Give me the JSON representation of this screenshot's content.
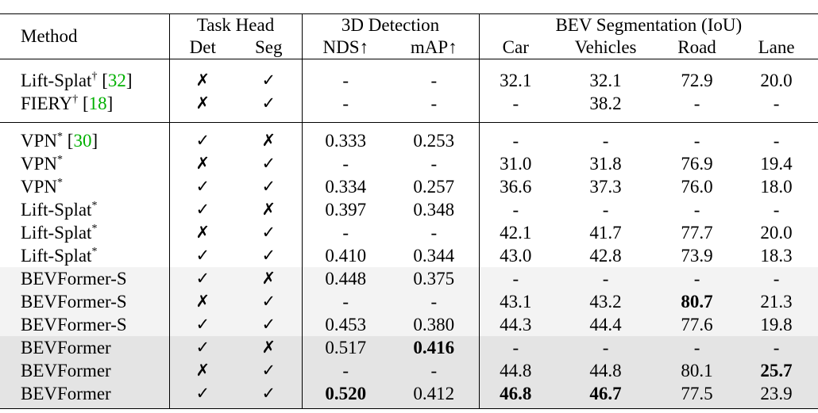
{
  "table": {
    "header": {
      "method": "Method",
      "task_head": "Task Head",
      "det": "Det",
      "seg": "Seg",
      "detection": "3D Detection",
      "nds": "NDS↑",
      "map": "mAP↑",
      "segmentation": "BEV Segmentation (IoU)",
      "car": "Car",
      "vehicles": "Vehicles",
      "road": "Road",
      "lane": "Lane"
    },
    "groups": [
      {
        "rows": [
          {
            "method": {
              "name": "Lift-Splat",
              "mark": "†",
              "cite": [
                "[",
                "32",
                "]"
              ]
            },
            "cells": [
              "✗",
              "✓",
              "-",
              "-",
              "32.1",
              "32.1",
              "72.9",
              "20.0"
            ],
            "bold": []
          },
          {
            "method": {
              "name": "FIERY",
              "mark": "†",
              "cite": [
                "[",
                "18",
                "]"
              ]
            },
            "cells": [
              "✗",
              "✓",
              "-",
              "-",
              "-",
              "38.2",
              "-",
              "-"
            ],
            "bold": []
          }
        ]
      },
      {
        "rows": [
          {
            "method": {
              "name": "VPN",
              "mark": "*",
              "cite": [
                "[",
                "30",
                "]"
              ]
            },
            "cells": [
              "✓",
              "✗",
              "0.333",
              "0.253",
              "-",
              "-",
              "-",
              "-"
            ],
            "bold": []
          },
          {
            "method": {
              "name": "VPN",
              "mark": "*"
            },
            "cells": [
              "✗",
              "✓",
              "-",
              "-",
              "31.0",
              "31.8",
              "76.9",
              "19.4"
            ],
            "bold": []
          },
          {
            "method": {
              "name": "VPN",
              "mark": "*"
            },
            "cells": [
              "✓",
              "✓",
              "0.334",
              "0.257",
              "36.6",
              "37.3",
              "76.0",
              "18.0"
            ],
            "bold": []
          },
          {
            "method": {
              "name": "Lift-Splat",
              "mark": "*"
            },
            "cells": [
              "✓",
              "✗",
              "0.397",
              "0.348",
              "-",
              "-",
              "-",
              "-"
            ],
            "bold": []
          },
          {
            "method": {
              "name": "Lift-Splat",
              "mark": "*"
            },
            "cells": [
              "✗",
              "✓",
              "-",
              "-",
              "42.1",
              "41.7",
              "77.7",
              "20.0"
            ],
            "bold": []
          },
          {
            "method": {
              "name": "Lift-Splat",
              "mark": "*"
            },
            "cells": [
              "✓",
              "✓",
              "0.410",
              "0.344",
              "43.0",
              "42.8",
              "73.9",
              "18.3"
            ],
            "bold": []
          },
          {
            "method": {
              "name": "BEVFormer-S"
            },
            "cells": [
              "✓",
              "✗",
              "0.448",
              "0.375",
              "-",
              "-",
              "-",
              "-"
            ],
            "bold": []
          },
          {
            "method": {
              "name": "BEVFormer-S"
            },
            "cells": [
              "✗",
              "✓",
              "-",
              "-",
              "43.1",
              "43.2",
              "80.7",
              "21.3"
            ],
            "bold": [
              6
            ]
          },
          {
            "method": {
              "name": "BEVFormer-S"
            },
            "cells": [
              "✓",
              "✓",
              "0.453",
              "0.380",
              "44.3",
              "44.4",
              "77.6",
              "19.8"
            ],
            "bold": []
          },
          {
            "method": {
              "name": "BEVFormer"
            },
            "cells": [
              "✓",
              "✗",
              "0.517",
              "0.416",
              "-",
              "-",
              "-",
              "-"
            ],
            "bold": [
              3
            ]
          },
          {
            "method": {
              "name": "BEVFormer"
            },
            "cells": [
              "✗",
              "✓",
              "-",
              "-",
              "44.8",
              "44.8",
              "80.1",
              "25.7"
            ],
            "bold": [
              7
            ]
          },
          {
            "method": {
              "name": "BEVFormer"
            },
            "cells": [
              "✓",
              "✓",
              "0.520",
              "0.412",
              "46.8",
              "46.7",
              "77.5",
              "23.9"
            ],
            "bold": [
              2,
              4,
              5
            ]
          }
        ]
      }
    ]
  }
}
